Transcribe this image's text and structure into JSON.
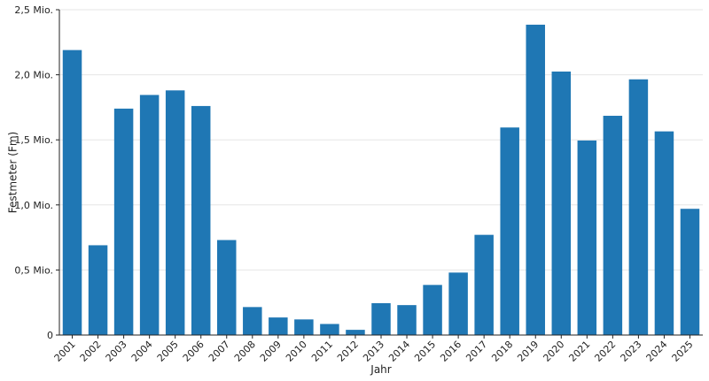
{
  "chart_data": {
    "type": "bar",
    "xlabel": "Jahr",
    "ylabel": "Festmeter (Fm)",
    "categories": [
      "2001",
      "2002",
      "2003",
      "2004",
      "2005",
      "2006",
      "2007",
      "2008",
      "2009",
      "2010",
      "2011",
      "2012",
      "2013",
      "2014",
      "2015",
      "2016",
      "2017",
      "2018",
      "2019",
      "2020",
      "2021",
      "2022",
      "2023",
      "2024",
      "2025"
    ],
    "values": [
      2190000,
      690000,
      1740000,
      1845000,
      1880000,
      1760000,
      730000,
      215000,
      135000,
      120000,
      85000,
      40000,
      245000,
      230000,
      385000,
      480000,
      770000,
      1595000,
      2385000,
      2025000,
      1495000,
      1685000,
      1965000,
      1565000,
      970000
    ],
    "ylim": [
      0,
      2500000
    ],
    "yticks": [
      {
        "value": 0,
        "label": "0"
      },
      {
        "value": 500000,
        "label": "0,5 Mio."
      },
      {
        "value": 1000000,
        "label": "1,0 Mio."
      },
      {
        "value": 1500000,
        "label": "1,5 Mio."
      },
      {
        "value": 2000000,
        "label": "2,0 Mio."
      },
      {
        "value": 2500000,
        "label": "2,5 Mio."
      }
    ],
    "grid": true,
    "colors": {
      "bar": "#1f77b4",
      "grid": "#e6e6e6",
      "axis": "#222222"
    }
  }
}
